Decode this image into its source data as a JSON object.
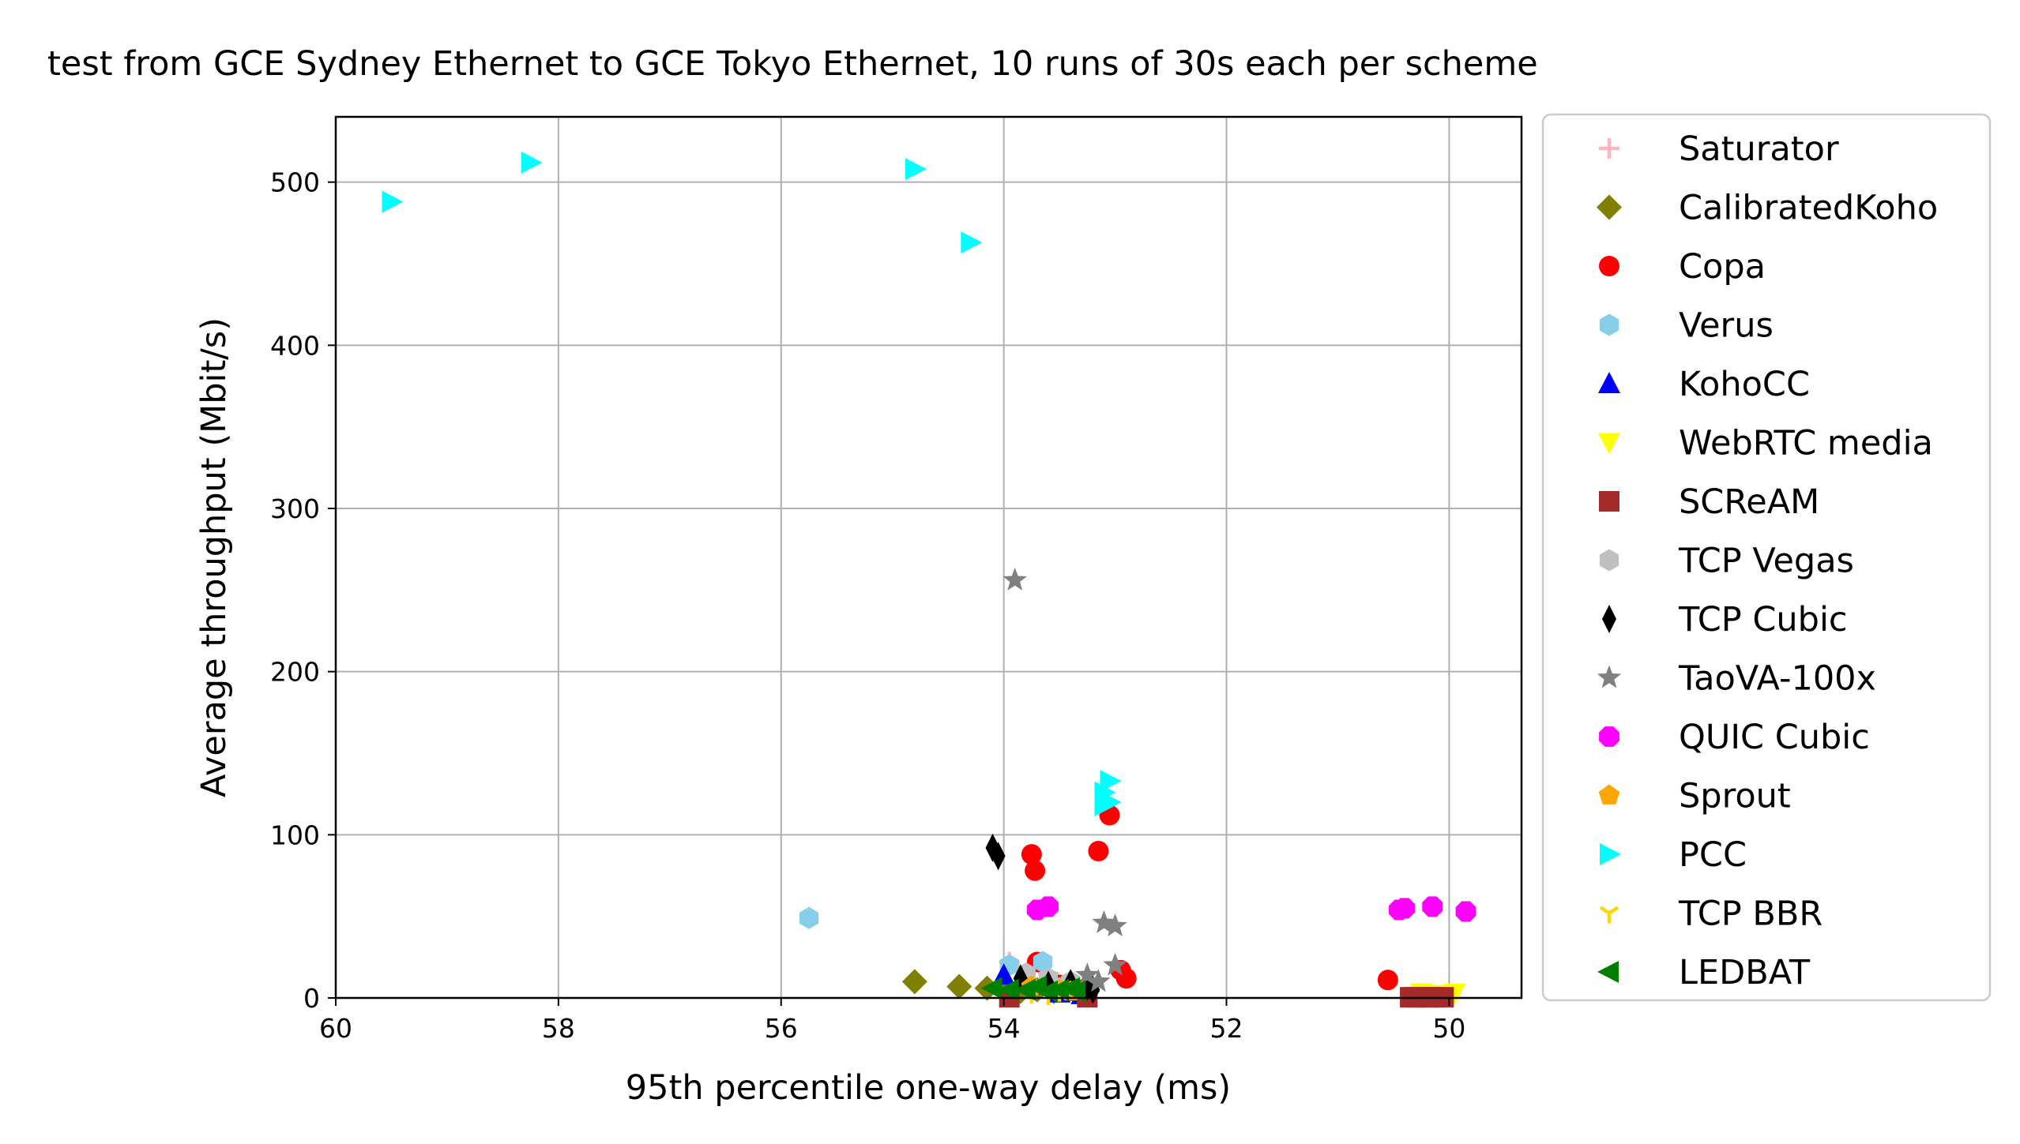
{
  "chart_data": {
    "type": "scatter",
    "title": "test from GCE Sydney Ethernet to GCE Tokyo Ethernet, 10 runs of 30s each per scheme",
    "xlabel": "95th percentile one-way delay (ms)",
    "ylabel": "Average throughput (Mbit/s)",
    "xlim": [
      60,
      49.35
    ],
    "ylim": [
      0,
      540
    ],
    "x_inverted": true,
    "xticks": [
      60,
      58,
      56,
      54,
      52,
      50
    ],
    "yticks": [
      0,
      100,
      200,
      300,
      400,
      500
    ],
    "grid": true,
    "legend_position": "outside right",
    "series": [
      {
        "name": "Saturator",
        "color": "#ffb6c1",
        "marker": "plus",
        "points": [
          [
            53.95,
            22
          ],
          [
            53.75,
            18
          ],
          [
            53.6,
            15
          ]
        ]
      },
      {
        "name": "CalibratedKoho",
        "color": "#808000",
        "marker": "diamond",
        "points": [
          [
            54.8,
            10
          ],
          [
            54.4,
            7
          ],
          [
            54.15,
            6
          ],
          [
            54.0,
            5
          ],
          [
            53.85,
            4
          ],
          [
            53.7,
            5
          ],
          [
            53.55,
            4
          ],
          [
            53.45,
            5
          ],
          [
            53.35,
            6
          ],
          [
            53.25,
            4
          ]
        ]
      },
      {
        "name": "Copa",
        "color": "#ff0000",
        "marker": "circle",
        "points": [
          [
            53.75,
            88
          ],
          [
            53.72,
            78
          ],
          [
            53.15,
            90
          ],
          [
            53.05,
            112
          ],
          [
            53.7,
            22
          ],
          [
            52.95,
            17
          ],
          [
            52.9,
            12
          ],
          [
            50.55,
            11
          ],
          [
            53.3,
            5
          ],
          [
            53.5,
            8
          ]
        ]
      },
      {
        "name": "Verus",
        "color": "#87ceeb",
        "marker": "hexagon",
        "points": [
          [
            55.75,
            49
          ],
          [
            53.95,
            20
          ],
          [
            53.65,
            22
          ],
          [
            53.8,
            8
          ],
          [
            53.5,
            6
          ],
          [
            53.4,
            5
          ]
        ]
      },
      {
        "name": "KohoCC",
        "color": "#0000ff",
        "marker": "triangle-up",
        "points": [
          [
            54.0,
            14
          ],
          [
            53.85,
            10
          ],
          [
            53.6,
            8
          ],
          [
            53.45,
            6
          ],
          [
            53.5,
            3
          ],
          [
            53.35,
            4
          ],
          [
            53.3,
            2
          ]
        ]
      },
      {
        "name": "WebRTC media",
        "color": "#ffff00",
        "marker": "triangle-down",
        "points": [
          [
            50.25,
            3
          ],
          [
            50.1,
            2
          ],
          [
            49.95,
            3
          ],
          [
            50.3,
            1
          ],
          [
            50.05,
            1
          ]
        ]
      },
      {
        "name": "SCReAM",
        "color": "#a52a2a",
        "marker": "square",
        "points": [
          [
            53.95,
            0.4
          ],
          [
            53.25,
            0.4
          ],
          [
            50.35,
            0.4
          ],
          [
            50.2,
            0.4
          ],
          [
            50.05,
            0.4
          ],
          [
            50.3,
            0.4
          ],
          [
            50.15,
            0.4
          ]
        ]
      },
      {
        "name": "TCP Vegas",
        "color": "#c0c0c0",
        "marker": "hexagon",
        "points": [
          [
            53.8,
            15
          ],
          [
            53.6,
            12
          ],
          [
            53.4,
            10
          ]
        ]
      },
      {
        "name": "TCP Cubic",
        "color": "#000000",
        "marker": "thin-diamond",
        "points": [
          [
            54.1,
            92
          ],
          [
            54.05,
            87
          ],
          [
            53.85,
            12
          ],
          [
            53.6,
            8
          ],
          [
            53.4,
            9
          ],
          [
            53.25,
            7
          ],
          [
            53.2,
            5
          ]
        ]
      },
      {
        "name": "TaoVA-100x",
        "color": "#808080",
        "marker": "star",
        "points": [
          [
            53.9,
            256
          ],
          [
            53.1,
            46
          ],
          [
            53.0,
            44
          ],
          [
            53.0,
            20
          ],
          [
            53.25,
            14
          ],
          [
            53.15,
            10
          ]
        ]
      },
      {
        "name": "QUIC Cubic",
        "color": "#ff00ff",
        "marker": "octagon",
        "points": [
          [
            53.7,
            54
          ],
          [
            53.6,
            56
          ],
          [
            50.45,
            54
          ],
          [
            50.4,
            55
          ],
          [
            50.15,
            56
          ],
          [
            49.85,
            53
          ]
        ]
      },
      {
        "name": "Sprout",
        "color": "#ffa500",
        "marker": "pentagon",
        "points": [
          [
            53.75,
            7
          ],
          [
            53.5,
            5
          ],
          [
            53.4,
            4
          ]
        ]
      },
      {
        "name": "PCC",
        "color": "#00ffff",
        "marker": "triangle-right",
        "points": [
          [
            59.5,
            488
          ],
          [
            58.25,
            512
          ],
          [
            54.8,
            508
          ],
          [
            54.3,
            463
          ],
          [
            53.05,
            133
          ],
          [
            53.1,
            126
          ],
          [
            53.05,
            120
          ],
          [
            53.1,
            118
          ]
        ]
      },
      {
        "name": "TCP BBR",
        "color": "#ffd700",
        "marker": "tri-down",
        "points": [
          [
            53.75,
            3
          ],
          [
            53.6,
            2
          ],
          [
            53.5,
            4
          ]
        ]
      },
      {
        "name": "LEDBAT",
        "color": "#008000",
        "marker": "triangle-left",
        "points": [
          [
            54.1,
            6
          ],
          [
            53.95,
            5
          ],
          [
            53.8,
            5
          ],
          [
            53.7,
            7
          ],
          [
            53.6,
            4
          ],
          [
            53.5,
            5
          ],
          [
            53.4,
            6
          ],
          [
            53.35,
            4
          ]
        ]
      }
    ]
  }
}
